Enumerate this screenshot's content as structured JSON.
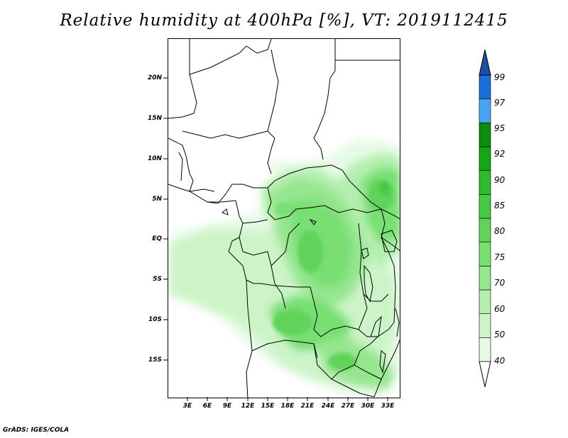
{
  "title": "Relative humidity at 400hPa [%], VT: 2019112415",
  "credit": "GrADS: IGES/COLA",
  "map": {
    "lat_labels": [
      "20N",
      "15N",
      "10N",
      "5N",
      "EQ",
      "5S",
      "10S",
      "15S"
    ],
    "lon_labels": [
      "3E",
      "6E",
      "9E",
      "12E",
      "15E",
      "18E",
      "21E",
      "24E",
      "27E",
      "30E",
      "33E"
    ]
  },
  "colorbar": {
    "levels": [
      "99",
      "97",
      "95",
      "92",
      "90",
      "85",
      "80",
      "75",
      "70",
      "60",
      "50",
      "40"
    ],
    "colors": [
      "#ffffff",
      "#e6fae6",
      "#cdf4c8",
      "#b4efae",
      "#96e68f",
      "#78df73",
      "#5fd35a",
      "#48c943",
      "#33b92f",
      "#17a515",
      "#0c8c0c",
      "#47a4f0",
      "#1a6fd8",
      "#1c4fa8"
    ]
  }
}
